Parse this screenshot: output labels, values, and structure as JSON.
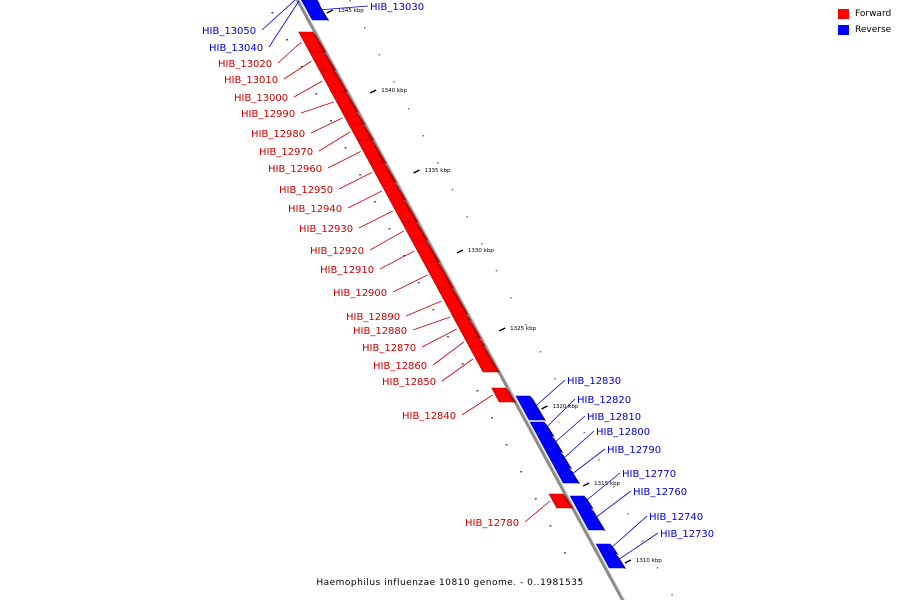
{
  "legend": {
    "forward": {
      "label": "Forward",
      "color": "#ff0000"
    },
    "reverse": {
      "label": "Reverse",
      "color": "#0000ff"
    }
  },
  "caption": "Haemophilus influenzae 10810 genome. - 0..1981535",
  "ticks": [
    {
      "label": "1345 kbp"
    },
    {
      "label": "1340 kbp"
    },
    {
      "label": "1335 kbp"
    },
    {
      "label": "1330 kbp"
    },
    {
      "label": "1325 kbp"
    },
    {
      "label": "1320 kbp"
    },
    {
      "label": "1315 kbp"
    },
    {
      "label": "1310 kbp"
    }
  ],
  "genes": [
    {
      "name": "HIB_13050",
      "strand": "reverse"
    },
    {
      "name": "HIB_13040",
      "strand": "reverse"
    },
    {
      "name": "HIB_13030",
      "strand": "reverse"
    },
    {
      "name": "HIB_13020",
      "strand": "forward"
    },
    {
      "name": "HIB_13010",
      "strand": "forward"
    },
    {
      "name": "HIB_13000",
      "strand": "forward"
    },
    {
      "name": "HIB_12990",
      "strand": "forward"
    },
    {
      "name": "HIB_12980",
      "strand": "forward"
    },
    {
      "name": "HIB_12970",
      "strand": "forward"
    },
    {
      "name": "HIB_12960",
      "strand": "forward"
    },
    {
      "name": "HIB_12950",
      "strand": "forward"
    },
    {
      "name": "HIB_12940",
      "strand": "forward"
    },
    {
      "name": "HIB_12930",
      "strand": "forward"
    },
    {
      "name": "HIB_12920",
      "strand": "forward"
    },
    {
      "name": "HIB_12910",
      "strand": "forward"
    },
    {
      "name": "HIB_12900",
      "strand": "forward"
    },
    {
      "name": "HIB_12890",
      "strand": "forward"
    },
    {
      "name": "HIB_12880",
      "strand": "forward"
    },
    {
      "name": "HIB_12870",
      "strand": "forward"
    },
    {
      "name": "HIB_12860",
      "strand": "forward"
    },
    {
      "name": "HIB_12850",
      "strand": "forward"
    },
    {
      "name": "HIB_12840",
      "strand": "forward"
    },
    {
      "name": "HIB_12830",
      "strand": "reverse"
    },
    {
      "name": "HIB_12820",
      "strand": "reverse"
    },
    {
      "name": "HIB_12810",
      "strand": "reverse"
    },
    {
      "name": "HIB_12800",
      "strand": "reverse"
    },
    {
      "name": "HIB_12790",
      "strand": "reverse"
    },
    {
      "name": "HIB_12780",
      "strand": "forward"
    },
    {
      "name": "HIB_12770",
      "strand": "reverse"
    },
    {
      "name": "HIB_12760",
      "strand": "reverse"
    },
    {
      "name": "HIB_12740",
      "strand": "reverse"
    },
    {
      "name": "HIB_12730",
      "strand": "reverse"
    }
  ]
}
